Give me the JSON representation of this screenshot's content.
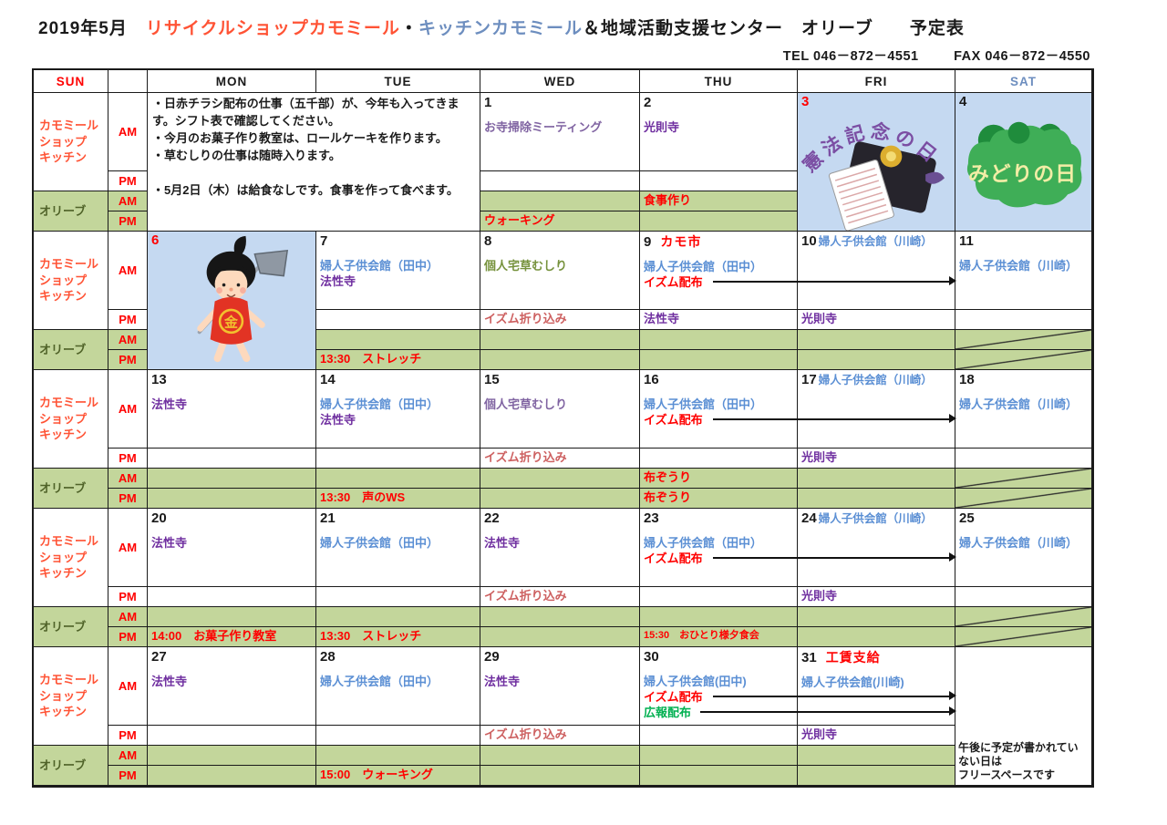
{
  "palette": {
    "black": "#1a1a1a",
    "red": "#ff0000",
    "rose": "#cd6060",
    "purple": "#7030a0",
    "violet": "#8064a2",
    "blue": "#5b8fd4",
    "steel": "#6d8ebf",
    "olivegreen": "#76923c",
    "green": "#00b050",
    "coral": "#ff5335",
    "darkgreen": "#4f6228",
    "cell_green_bg": "#c3d69b",
    "cell_blue_bg": "#c5d9f1"
  },
  "title": {
    "parts": [
      {
        "text": "2019年5月",
        "color": "black"
      },
      {
        "text": "　",
        "color": "black"
      },
      {
        "text": "リサイクルショップカモミール",
        "color": "coral"
      },
      {
        "text": "・",
        "color": "black"
      },
      {
        "text": "キッチンカモミール",
        "color": "steel"
      },
      {
        "text": "＆地域活動支援センター　オリーブ　　予定表",
        "color": "black"
      }
    ]
  },
  "contact": {
    "tel": "TEL 046－872－4551",
    "fax": "FAX 046－872－4550"
  },
  "header": {
    "cells": [
      {
        "label": "SUN",
        "color": "red"
      },
      {
        "label": "",
        "color": "black"
      },
      {
        "label": "MON",
        "color": "black"
      },
      {
        "label": "TUE",
        "color": "black"
      },
      {
        "label": "WED",
        "color": "black"
      },
      {
        "label": "THU",
        "color": "black"
      },
      {
        "label": "FRI",
        "color": "black"
      },
      {
        "label": "SAT",
        "color": "steel"
      }
    ]
  },
  "labels": {
    "chamomile": [
      "カモミール",
      "ショップ",
      "キッチン"
    ],
    "olive": "オリーブ",
    "am": "AM",
    "pm": "PM"
  },
  "weeks": [
    {
      "notes": {
        "lines": [
          "・日赤チラシ配布の仕事（五千部）が、今年も入ってきます。シフト表で確認してください。",
          "・今月のお菓子作り教室は、ロールケーキを作ります。",
          "・草むしりの仕事は随時入ります。",
          "",
          "・5月2日（木）は給食なしです。食事を作って食べます。"
        ]
      },
      "days": {
        "wed": {
          "date": "1",
          "am": [
            {
              "text": "お寺掃除ミーティング",
              "color": "violet"
            }
          ],
          "olive_pm": [
            {
              "text": "ウォーキング",
              "color": "red"
            }
          ]
        },
        "thu": {
          "date": "2",
          "am": [
            {
              "text": "光則寺",
              "color": "purple"
            }
          ],
          "olive_am": [
            {
              "text": "食事作り",
              "color": "red"
            }
          ]
        },
        "fri": {
          "date": "3",
          "date_color": "red",
          "image": {
            "name": "constitution-day",
            "label": "憲法記念の日"
          }
        },
        "sat": {
          "date": "4",
          "image": {
            "name": "greenery-day",
            "label": "みどりの日"
          }
        }
      }
    },
    {
      "days": {
        "mon": {
          "date": "6",
          "date_color": "red",
          "image": {
            "name": "kintaro",
            "label": "金"
          }
        },
        "tue": {
          "date": "7",
          "am": [
            {
              "text": "婦人子供会館（田中）",
              "color": "blue"
            },
            {
              "text": "法性寺",
              "color": "purple"
            }
          ],
          "olive_pm": [
            {
              "text": "13:30　ストレッチ",
              "color": "red"
            }
          ]
        },
        "wed": {
          "date": "8",
          "am": [
            {
              "text": "個人宅草むしり",
              "color": "olivegreen"
            }
          ],
          "pm": [
            {
              "text": "イズム折り込み",
              "color": "rose"
            }
          ]
        },
        "thu": {
          "date": "9",
          "date_suffix": {
            "text": "カモ市",
            "color": "red"
          },
          "am": [
            {
              "text": "婦人子供会館（田中）",
              "color": "blue"
            },
            {
              "text": "イズム配布",
              "color": "red",
              "arrow": true
            }
          ],
          "pm": [
            {
              "text": "法性寺",
              "color": "purple"
            }
          ]
        },
        "fri": {
          "date": "10",
          "date_inline": {
            "text": "婦人子供会館（川崎）",
            "color": "blue"
          },
          "pm": [
            {
              "text": "光則寺",
              "color": "purple"
            }
          ]
        },
        "sat": {
          "date": "11",
          "am": [
            {
              "text": "婦人子供会館（川崎）",
              "color": "blue"
            }
          ],
          "slash_am": true,
          "slash_pm": true
        }
      }
    },
    {
      "days": {
        "mon": {
          "date": "13",
          "am": [
            {
              "text": "法性寺",
              "color": "purple"
            }
          ]
        },
        "tue": {
          "date": "14",
          "am": [
            {
              "text": "婦人子供会館（田中）",
              "color": "blue"
            },
            {
              "text": "法性寺",
              "color": "purple"
            }
          ],
          "olive_pm": [
            {
              "text": "13:30　声のWS",
              "color": "red"
            }
          ]
        },
        "wed": {
          "date": "15",
          "am": [
            {
              "text": "個人宅草むしり",
              "color": "violet"
            }
          ],
          "pm": [
            {
              "text": "イズム折り込み",
              "color": "rose"
            }
          ]
        },
        "thu": {
          "date": "16",
          "am": [
            {
              "text": "婦人子供会館（田中）",
              "color": "blue"
            },
            {
              "text": "イズム配布",
              "color": "red",
              "arrow": true
            }
          ],
          "olive_am": [
            {
              "text": "布ぞうり",
              "color": "red"
            }
          ],
          "olive_pm": [
            {
              "text": "布ぞうり",
              "color": "red"
            }
          ]
        },
        "fri": {
          "date": "17",
          "date_inline": {
            "text": "婦人子供会館（川崎）",
            "color": "blue"
          },
          "pm": [
            {
              "text": "光則寺",
              "color": "purple"
            }
          ]
        },
        "sat": {
          "date": "18",
          "am": [
            {
              "text": "婦人子供会館（川崎）",
              "color": "blue"
            }
          ],
          "slash_am": true,
          "slash_pm": true
        }
      }
    },
    {
      "days": {
        "mon": {
          "date": "20",
          "am": [
            {
              "text": "法性寺",
              "color": "purple"
            }
          ],
          "olive_pm": [
            {
              "text": "14:00　お菓子作り教室",
              "color": "red"
            }
          ]
        },
        "tue": {
          "date": "21",
          "am": [
            {
              "text": "婦人子供会館（田中）",
              "color": "blue"
            }
          ],
          "olive_pm": [
            {
              "text": "13:30　ストレッチ",
              "color": "red"
            }
          ]
        },
        "wed": {
          "date": "22",
          "am": [
            {
              "text": "法性寺",
              "color": "purple"
            }
          ],
          "pm": [
            {
              "text": "イズム折り込み",
              "color": "rose"
            }
          ]
        },
        "thu": {
          "date": "23",
          "am": [
            {
              "text": "婦人子供会館（田中）",
              "color": "blue"
            },
            {
              "text": "イズム配布",
              "color": "red",
              "arrow": true
            }
          ],
          "olive_pm": [
            {
              "text": "15:30　おひとり様夕食会",
              "color": "red",
              "small": true
            }
          ]
        },
        "fri": {
          "date": "24",
          "date_inline": {
            "text": "婦人子供会館（川崎）",
            "color": "blue"
          },
          "pm": [
            {
              "text": "光則寺",
              "color": "purple"
            }
          ]
        },
        "sat": {
          "date": "25",
          "am": [
            {
              "text": "婦人子供会館（川崎）",
              "color": "blue"
            }
          ],
          "slash_am": true,
          "slash_pm": true
        }
      }
    },
    {
      "days": {
        "mon": {
          "date": "27",
          "am": [
            {
              "text": "法性寺",
              "color": "purple"
            }
          ]
        },
        "tue": {
          "date": "28",
          "am": [
            {
              "text": "婦人子供会館（田中）",
              "color": "blue"
            }
          ],
          "olive_pm": [
            {
              "text": "15:00　ウォーキング",
              "color": "red"
            }
          ]
        },
        "wed": {
          "date": "29",
          "am": [
            {
              "text": "法性寺",
              "color": "purple"
            }
          ],
          "pm": [
            {
              "text": "イズム折り込み",
              "color": "rose"
            }
          ]
        },
        "thu": {
          "date": "30",
          "am": [
            {
              "text": "婦人子供会館(田中)",
              "color": "blue"
            },
            {
              "text": "イズム配布",
              "color": "red",
              "arrow": true
            },
            {
              "text": "広報配布",
              "color": "green",
              "arrow": true
            }
          ]
        },
        "fri": {
          "date": "31",
          "date_suffix": {
            "text": "工賃支給",
            "color": "red"
          },
          "am": [
            {
              "text": "婦人子供会館(川崎)",
              "color": "blue"
            }
          ],
          "pm": [
            {
              "text": "光則寺",
              "color": "purple"
            }
          ]
        },
        "sat": {
          "note_lines": [
            "午後に予定が書かれてい",
            "ない日は",
            "フリースペースです"
          ]
        }
      }
    }
  ]
}
